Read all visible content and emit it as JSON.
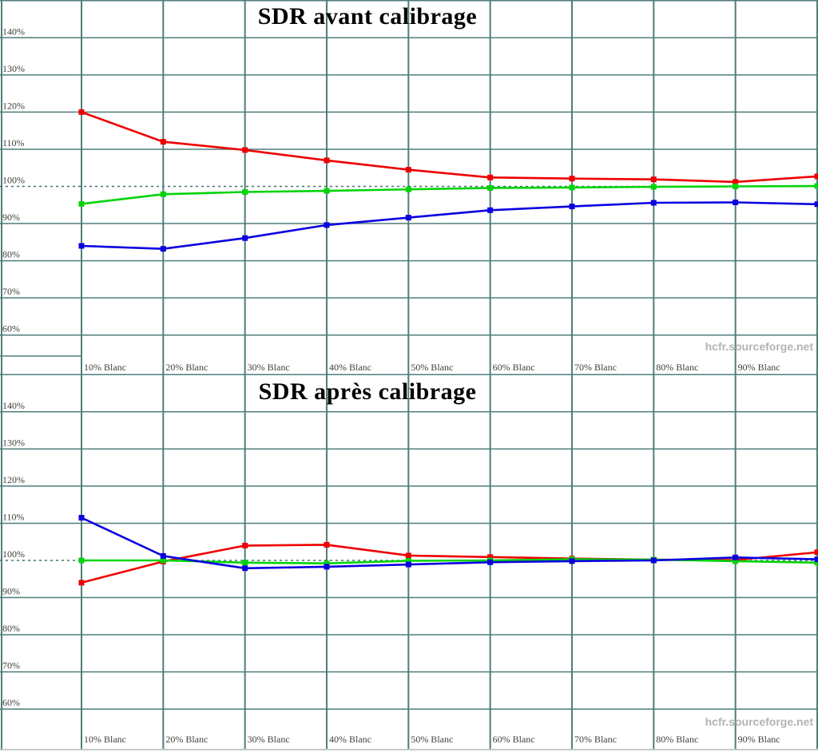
{
  "page": {
    "background": "#ffffff",
    "watermark_text": "hcfr.sourceforge.net"
  },
  "style_colors": {
    "grid": "#4f7d7a",
    "reference_dotted": "#44706d",
    "axis_text": "#3f3f39",
    "title_text": "#000000",
    "watermark_text_color": "#b3b3b3",
    "bottom_rule": "#c8c8c8"
  },
  "chart_data": [
    {
      "id": "sdr-avant",
      "type": "line",
      "title": "SDR avant calibrage",
      "watermark": "hcfr.sourceforge.net",
      "xlabel": "",
      "ylabel": "",
      "x": [
        10,
        20,
        30,
        40,
        50,
        60,
        70,
        80,
        90,
        100
      ],
      "x_tick_labels": [
        "10% Blanc",
        "20% Blanc",
        "30% Blanc",
        "40% Blanc",
        "50% Blanc",
        "60% Blanc",
        "70% Blanc",
        "80% Blanc",
        "90% Blanc"
      ],
      "y_tick_labels": [
        "140%",
        "130%",
        "120%",
        "110%",
        "100%",
        "90%",
        "80%",
        "70%",
        "60%"
      ],
      "y_ticks": [
        140,
        130,
        120,
        110,
        100,
        90,
        80,
        70,
        60
      ],
      "ylim": [
        53,
        150.3
      ],
      "reference_line": 100,
      "grid": "on",
      "legend": "none",
      "series": [
        {
          "name": "red",
          "color": "#ee0000",
          "values": [
            120.0,
            112.0,
            109.8,
            107.0,
            104.5,
            102.4,
            102.1,
            101.9,
            101.2,
            102.7
          ]
        },
        {
          "name": "green",
          "color": "#00d40a",
          "values": [
            95.3,
            97.9,
            98.5,
            98.8,
            99.2,
            99.6,
            99.7,
            99.9,
            100.0,
            100.1
          ]
        },
        {
          "name": "blue",
          "color": "#0b00e0",
          "values": [
            84.0,
            83.2,
            86.1,
            89.6,
            91.6,
            93.6,
            94.6,
            95.6,
            95.7,
            95.2
          ]
        }
      ]
    },
    {
      "id": "sdr-apres",
      "type": "line",
      "title": "SDR après calibrage",
      "watermark": "hcfr.sourceforge.net",
      "xlabel": "",
      "ylabel": "",
      "x": [
        10,
        20,
        30,
        40,
        50,
        60,
        70,
        80,
        90,
        100
      ],
      "x_tick_labels": [
        "10% Blanc",
        "20% Blanc",
        "30% Blanc",
        "40% Blanc",
        "50% Blanc",
        "60% Blanc",
        "70% Blanc",
        "80% Blanc",
        "90% Blanc"
      ],
      "y_tick_labels": [
        "140%",
        "130%",
        "120%",
        "110%",
        "100%",
        "90%",
        "80%",
        "70%",
        "60%"
      ],
      "y_ticks": [
        140,
        130,
        120,
        110,
        100,
        90,
        80,
        70,
        60
      ],
      "ylim": [
        53,
        150.3
      ],
      "reference_line": 100,
      "grid": "on",
      "legend": "none",
      "series": [
        {
          "name": "red",
          "color": "#ee0000",
          "values": [
            94.0,
            99.7,
            104.0,
            104.2,
            101.3,
            100.9,
            100.5,
            100.2,
            100.1,
            102.2
          ]
        },
        {
          "name": "green",
          "color": "#00d40a",
          "values": [
            100.0,
            100.0,
            99.4,
            99.2,
            99.9,
            100.0,
            100.3,
            100.2,
            99.8,
            99.4
          ]
        },
        {
          "name": "blue",
          "color": "#0b00e0",
          "values": [
            111.5,
            101.2,
            97.9,
            98.3,
            98.9,
            99.5,
            99.8,
            100.0,
            100.8,
            100.3
          ]
        }
      ]
    }
  ]
}
